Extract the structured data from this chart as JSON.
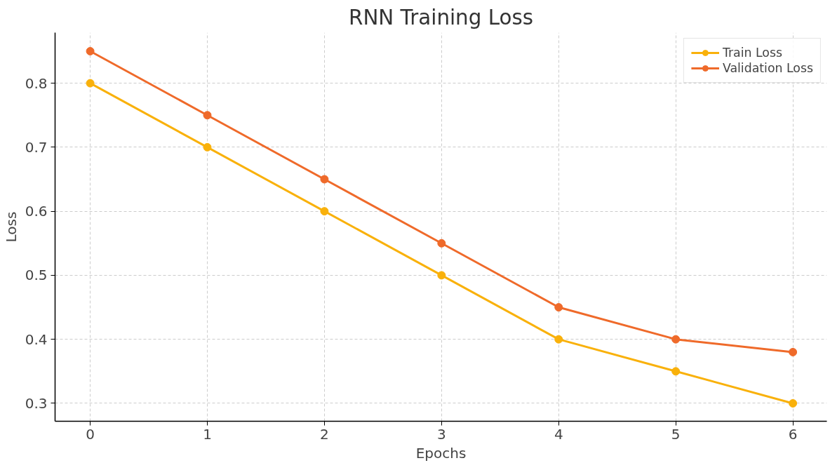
{
  "chart_data": {
    "type": "line",
    "title": "RNN Training Loss",
    "xlabel": "Epochs",
    "ylabel": "Loss",
    "x": [
      0,
      1,
      2,
      3,
      4,
      5,
      6
    ],
    "series": [
      {
        "name": "Train Loss",
        "color": "#f9b10b",
        "values": [
          0.8,
          0.7,
          0.6,
          0.5,
          0.4,
          0.35,
          0.3
        ]
      },
      {
        "name": "Validation Loss",
        "color": "#ef6a2a",
        "values": [
          0.85,
          0.75,
          0.65,
          0.55,
          0.45,
          0.4,
          0.38
        ]
      }
    ],
    "xlim": [
      -0.3,
      6.29
    ],
    "ylim": [
      0.272,
      0.879
    ],
    "xticks": [
      0,
      1,
      2,
      3,
      4,
      5,
      6
    ],
    "yticks": [
      0.3,
      0.4,
      0.5,
      0.6,
      0.7,
      0.8
    ],
    "grid": true,
    "legend": "top right",
    "marker": "circle",
    "line_style": "solid"
  }
}
